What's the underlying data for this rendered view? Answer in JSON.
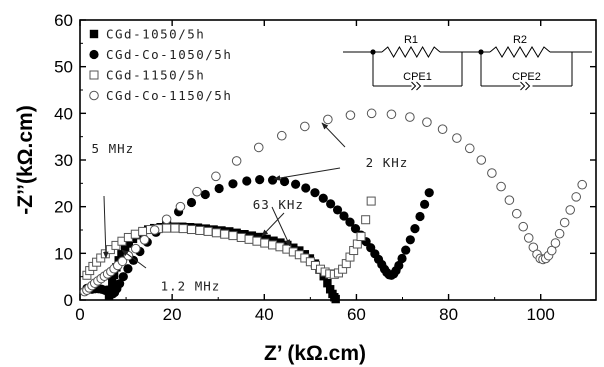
{
  "chart_data": {
    "type": "scatter",
    "xlabel": "Z’ (kΩ.cm)",
    "ylabel": "-Z’’(kΩ.cm)",
    "xlim": [
      0,
      112
    ],
    "ylim": [
      0,
      60
    ],
    "xticks": [
      "0",
      "20",
      "40",
      "60",
      "80",
      "100"
    ],
    "yticks": [
      "0",
      "10",
      "20",
      "30",
      "40",
      "50",
      "60"
    ],
    "grid": false,
    "legend_position": "top-left",
    "series": [
      {
        "name": "CGd-1050/5h",
        "marker": "filled-square",
        "color": "#000000",
        "x": [
          6.3,
          6.6,
          7.0,
          7.4,
          7.9,
          8.4,
          9.0,
          9.8,
          10.6,
          11.5,
          12.5,
          13.6,
          14.8,
          16.1,
          17.5,
          19.0,
          20.6,
          22.2,
          23.9,
          25.6,
          27.3,
          29.0,
          30.7,
          32.4,
          34.0,
          35.7,
          37.3,
          38.9,
          40.5,
          42.0,
          43.5,
          45.0,
          46.3,
          47.6,
          48.8,
          49.9,
          51.0,
          52.0,
          52.9,
          53.7,
          54.3,
          54.8,
          55.2,
          55.5
        ],
        "y": [
          0.8,
          2.2,
          3.8,
          5.4,
          7.0,
          8.5,
          9.8,
          11.0,
          12.1,
          13.1,
          13.9,
          14.6,
          15.1,
          15.4,
          15.6,
          15.7,
          15.7,
          15.7,
          15.6,
          15.5,
          15.3,
          15.1,
          14.9,
          14.7,
          14.4,
          14.1,
          13.8,
          13.5,
          13.1,
          12.7,
          12.3,
          11.8,
          11.2,
          10.6,
          9.8,
          8.9,
          7.8,
          6.5,
          5.1,
          3.6,
          2.3,
          1.3,
          0.6,
          0.2
        ]
      },
      {
        "name": "CGd-Co-1050/5h",
        "marker": "filled-circle",
        "color": "#000000",
        "x": [
          1.5,
          2.0,
          2.6,
          3.3,
          4.0,
          4.7,
          5.4,
          6.0,
          6.6,
          7.1,
          7.5,
          8.0,
          8.6,
          9.4,
          10.4,
          11.6,
          13.0,
          14.6,
          16.5,
          18.8,
          21.4,
          24.2,
          27.2,
          30.2,
          33.2,
          36.2,
          39.0,
          41.8,
          44.4,
          46.8,
          49.0,
          51.0,
          52.8,
          54.4,
          55.9,
          57.3,
          58.6,
          59.8,
          61.0,
          62.1,
          63.1,
          64.0,
          64.8,
          65.5,
          66.1,
          66.6,
          67.1,
          67.6,
          68.1,
          68.6,
          69.2,
          69.9,
          70.7,
          71.7,
          72.7,
          73.8,
          74.8,
          75.8
        ],
        "y": [
          2.5,
          2.3,
          2.3,
          2.4,
          2.4,
          2.3,
          2.1,
          1.8,
          1.5,
          1.3,
          1.6,
          2.4,
          3.5,
          5.0,
          6.7,
          8.5,
          10.4,
          12.4,
          14.5,
          16.7,
          18.9,
          20.9,
          22.6,
          23.9,
          24.9,
          25.5,
          25.8,
          25.7,
          25.4,
          24.8,
          24.0,
          23.0,
          21.8,
          20.6,
          19.3,
          18.0,
          16.7,
          15.3,
          13.9,
          12.5,
          11.2,
          9.9,
          8.7,
          7.6,
          6.6,
          5.9,
          5.4,
          5.3,
          5.6,
          6.3,
          7.4,
          8.9,
          10.7,
          12.9,
          15.3,
          17.9,
          20.5,
          23.0
        ]
      },
      {
        "name": "CGd-1150/5h",
        "marker": "open-square",
        "color": "#555555",
        "x": [
          1.5,
          2.1,
          2.8,
          3.6,
          4.5,
          5.5,
          6.6,
          7.8,
          9.1,
          10.5,
          12.0,
          13.6,
          15.3,
          17.0,
          18.8,
          20.6,
          22.4,
          24.2,
          26.0,
          27.8,
          29.6,
          31.4,
          33.2,
          35.0,
          36.7,
          38.4,
          40.1,
          41.8,
          43.4,
          44.9,
          46.3,
          47.6,
          48.8,
          50.0,
          51.1,
          52.2,
          53.2,
          54.2,
          55.2,
          56.1,
          57.0,
          57.8,
          58.6,
          59.4,
          60.2,
          61.0,
          62.0,
          63.2
        ],
        "y": [
          5.3,
          6.3,
          7.2,
          8.1,
          9.0,
          9.9,
          10.8,
          11.7,
          12.6,
          13.4,
          14.1,
          14.7,
          15.1,
          15.3,
          15.4,
          15.4,
          15.3,
          15.1,
          14.9,
          14.7,
          14.4,
          14.1,
          13.8,
          13.4,
          13.0,
          12.6,
          12.2,
          11.8,
          11.4,
          10.9,
          10.3,
          9.7,
          9.0,
          8.2,
          7.4,
          6.6,
          6.0,
          5.6,
          5.5,
          5.8,
          6.6,
          7.8,
          9.2,
          10.6,
          12.0,
          13.6,
          17.2,
          21.2
        ]
      },
      {
        "name": "CGd-Co-1150/5h",
        "marker": "open-circle",
        "color": "#555555",
        "x": [
          1.0,
          1.5,
          2.0,
          2.6,
          3.2,
          3.9,
          4.6,
          5.3,
          6.0,
          6.7,
          7.4,
          8.2,
          9.2,
          10.5,
          12.1,
          14.0,
          16.2,
          18.8,
          21.8,
          25.4,
          29.5,
          34.0,
          38.8,
          43.8,
          48.8,
          53.8,
          58.7,
          63.3,
          67.6,
          71.6,
          75.3,
          78.7,
          81.8,
          84.6,
          87.1,
          89.4,
          91.4,
          93.2,
          94.8,
          96.2,
          97.4,
          98.4,
          99.2,
          99.9,
          100.5,
          101.1,
          101.7,
          102.4,
          103.2,
          104.1,
          105.2,
          106.4,
          107.7,
          109.0
        ],
        "y": [
          1.8,
          2.1,
          2.6,
          3.1,
          3.6,
          4.1,
          4.6,
          5.1,
          5.6,
          6.1,
          6.7,
          7.4,
          8.3,
          9.5,
          11.0,
          12.9,
          15.0,
          17.3,
          20.0,
          23.2,
          26.5,
          29.8,
          32.7,
          35.2,
          37.2,
          38.7,
          39.6,
          40.0,
          39.8,
          39.2,
          38.1,
          36.6,
          34.7,
          32.5,
          30.0,
          27.2,
          24.3,
          21.4,
          18.5,
          15.7,
          13.3,
          11.3,
          9.8,
          8.9,
          8.7,
          8.9,
          9.5,
          10.6,
          12.2,
          14.2,
          16.6,
          19.3,
          22.1,
          24.7
        ]
      }
    ],
    "annotations": [
      {
        "text": "5 MHz",
        "x": 2.5,
        "y": 31.5
      },
      {
        "text": "1.2 MHz",
        "x": 17.5,
        "y": 2.0
      },
      {
        "text": "63 KHz",
        "x": 37.5,
        "y": 19.5
      },
      {
        "text": "2 KHz",
        "x": 62.0,
        "y": 28.5
      }
    ],
    "inset_circuit": {
      "labels": [
        "R1",
        "CPE1",
        "R2",
        "CPE2"
      ]
    }
  }
}
